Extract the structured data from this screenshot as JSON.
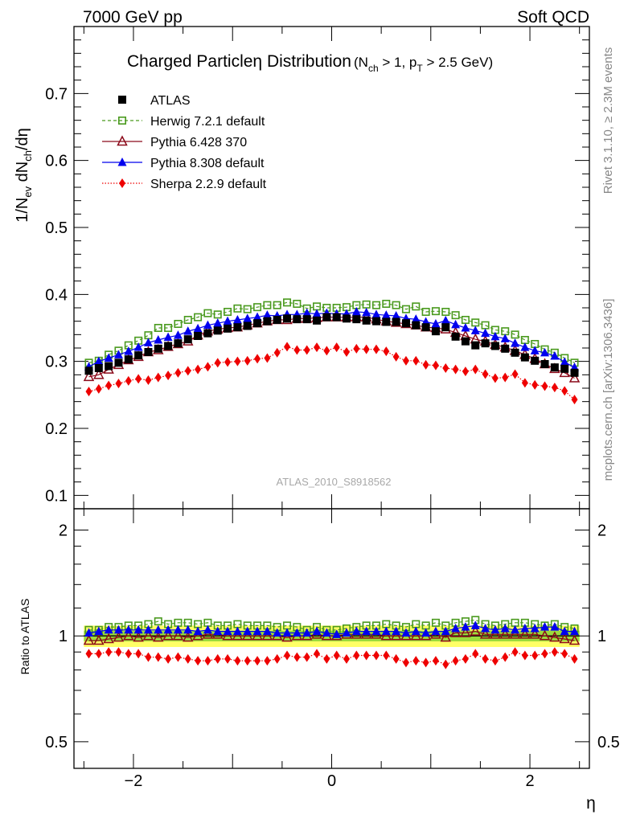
{
  "header": {
    "left": "7000 GeV pp",
    "right": "Soft QCD"
  },
  "title": {
    "main": "Charged Particle",
    "eta": "η",
    "suffix": " Distribution",
    "cond_open": "(N",
    "cond_ch": "ch",
    "cond_mid": " > 1, p",
    "cond_T": "T",
    "cond_close": " > 2.5 GeV)"
  },
  "ylabel_top": {
    "a": "1/N",
    "ev": "ev",
    "b": " dN",
    "ch": "ch",
    "c": "/dη"
  },
  "ylabel_ratio": "Ratio to ATLAS",
  "xlabel": "η",
  "side_right_top": "Rivet 3.1.10, ≥ 2.3M events",
  "side_right_bottom": "mcplots.cern.ch [arXiv:1306.3436]",
  "watermark": "ATLAS_2010_S8918562",
  "colors": {
    "atlas": "#000000",
    "herwig": "#4a9a1e",
    "pythia6": "#8b0a1a",
    "pythia8": "#0000ee",
    "sherpa": "#ee0000",
    "band_inner": "#9bdc3c",
    "band_outer": "#ffff66"
  },
  "chart_data": [
    {
      "type": "scatter",
      "panel": "main",
      "xlabel": "η",
      "ylabel": "1/Nev dNch/dη",
      "xlim": [
        -2.6,
        2.6
      ],
      "ylim": [
        0.08,
        0.8
      ],
      "yticks": [
        0.1,
        0.2,
        0.3,
        0.4,
        0.5,
        0.6,
        0.7
      ],
      "ytick_labels": [
        "0.1",
        "0.2",
        "0.3",
        "0.4",
        "0.5",
        "0.6",
        "0.7"
      ],
      "legend_position": "top-left",
      "x": [
        -2.45,
        -2.35,
        -2.25,
        -2.15,
        -2.05,
        -1.95,
        -1.85,
        -1.75,
        -1.65,
        -1.55,
        -1.45,
        -1.35,
        -1.25,
        -1.15,
        -1.05,
        -0.95,
        -0.85,
        -0.75,
        -0.65,
        -0.55,
        -0.45,
        -0.35,
        -0.25,
        -0.15,
        -0.05,
        0.05,
        0.15,
        0.25,
        0.35,
        0.45,
        0.55,
        0.65,
        0.75,
        0.85,
        0.95,
        1.05,
        1.15,
        1.25,
        1.35,
        1.45,
        1.55,
        1.65,
        1.75,
        1.85,
        1.95,
        2.05,
        2.15,
        2.25,
        2.35,
        2.45
      ],
      "series": [
        {
          "name": "ATLAS",
          "marker": "filled-square",
          "line": "none",
          "values": [
            0.286,
            0.29,
            0.293,
            0.298,
            0.303,
            0.309,
            0.314,
            0.319,
            0.323,
            0.327,
            0.333,
            0.338,
            0.342,
            0.346,
            0.349,
            0.351,
            0.353,
            0.357,
            0.36,
            0.362,
            0.364,
            0.363,
            0.363,
            0.361,
            0.366,
            0.366,
            0.364,
            0.363,
            0.361,
            0.36,
            0.359,
            0.359,
            0.357,
            0.354,
            0.351,
            0.345,
            0.351,
            0.337,
            0.33,
            0.324,
            0.327,
            0.323,
            0.319,
            0.313,
            0.306,
            0.301,
            0.296,
            0.291,
            0.289,
            0.283
          ]
        },
        {
          "name": "Herwig 7.2.1 default",
          "marker": "open-square",
          "line": "dashed",
          "values": [
            0.298,
            0.301,
            0.31,
            0.316,
            0.324,
            0.331,
            0.339,
            0.35,
            0.35,
            0.356,
            0.362,
            0.366,
            0.372,
            0.37,
            0.374,
            0.379,
            0.378,
            0.381,
            0.384,
            0.384,
            0.388,
            0.386,
            0.379,
            0.382,
            0.38,
            0.38,
            0.381,
            0.384,
            0.385,
            0.384,
            0.386,
            0.384,
            0.378,
            0.382,
            0.374,
            0.375,
            0.374,
            0.369,
            0.362,
            0.358,
            0.354,
            0.347,
            0.345,
            0.34,
            0.332,
            0.326,
            0.318,
            0.313,
            0.305,
            0.298
          ]
        },
        {
          "name": "Pythia 6.428 370",
          "marker": "open-triangle",
          "line": "solid",
          "values": [
            0.277,
            0.28,
            0.288,
            0.295,
            0.302,
            0.307,
            0.314,
            0.317,
            0.322,
            0.326,
            0.33,
            0.339,
            0.345,
            0.348,
            0.35,
            0.351,
            0.354,
            0.357,
            0.36,
            0.362,
            0.362,
            0.364,
            0.364,
            0.365,
            0.366,
            0.366,
            0.366,
            0.366,
            0.366,
            0.363,
            0.36,
            0.358,
            0.356,
            0.354,
            0.351,
            0.35,
            0.348,
            0.343,
            0.338,
            0.333,
            0.33,
            0.325,
            0.321,
            0.316,
            0.31,
            0.304,
            0.296,
            0.289,
            0.283,
            0.275
          ]
        },
        {
          "name": "Pythia 8.308 default",
          "marker": "filled-triangle",
          "line": "solid",
          "values": [
            0.292,
            0.3,
            0.305,
            0.31,
            0.315,
            0.321,
            0.328,
            0.332,
            0.336,
            0.339,
            0.345,
            0.349,
            0.354,
            0.357,
            0.36,
            0.362,
            0.364,
            0.366,
            0.369,
            0.368,
            0.37,
            0.37,
            0.372,
            0.371,
            0.372,
            0.371,
            0.371,
            0.374,
            0.373,
            0.37,
            0.369,
            0.368,
            0.364,
            0.363,
            0.359,
            0.356,
            0.361,
            0.355,
            0.35,
            0.346,
            0.342,
            0.337,
            0.334,
            0.327,
            0.321,
            0.316,
            0.313,
            0.308,
            0.299,
            0.291
          ]
        },
        {
          "name": "Sherpa 2.2.9 default",
          "marker": "filled-diamond",
          "line": "dotted",
          "values": [
            0.255,
            0.259,
            0.264,
            0.267,
            0.271,
            0.274,
            0.272,
            0.276,
            0.279,
            0.283,
            0.286,
            0.288,
            0.292,
            0.298,
            0.299,
            0.3,
            0.301,
            0.304,
            0.305,
            0.313,
            0.322,
            0.317,
            0.317,
            0.321,
            0.316,
            0.321,
            0.314,
            0.319,
            0.318,
            0.318,
            0.315,
            0.307,
            0.301,
            0.301,
            0.295,
            0.294,
            0.29,
            0.288,
            0.285,
            0.288,
            0.281,
            0.275,
            0.276,
            0.281,
            0.268,
            0.265,
            0.263,
            0.261,
            0.256,
            0.243
          ]
        }
      ]
    },
    {
      "type": "scatter",
      "panel": "ratio",
      "xlabel": "η",
      "ylabel": "Ratio to ATLAS",
      "xlim": [
        -2.6,
        2.6
      ],
      "ylim": [
        0.42,
        2.3
      ],
      "yscale": "log",
      "yticks": [
        0.5,
        1,
        2
      ],
      "ytick_labels": [
        "0.5",
        "1",
        "2"
      ],
      "xticks": [
        -2,
        0,
        2
      ],
      "xtick_labels": [
        "−2",
        "0",
        "2"
      ],
      "band_outer": 0.07,
      "band_inner": 0.035,
      "reference": 1,
      "x": [
        -2.45,
        -2.35,
        -2.25,
        -2.15,
        -2.05,
        -1.95,
        -1.85,
        -1.75,
        -1.65,
        -1.55,
        -1.45,
        -1.35,
        -1.25,
        -1.15,
        -1.05,
        -0.95,
        -0.85,
        -0.75,
        -0.65,
        -0.55,
        -0.45,
        -0.35,
        -0.25,
        -0.15,
        -0.05,
        0.05,
        0.15,
        0.25,
        0.35,
        0.45,
        0.55,
        0.65,
        0.75,
        0.85,
        0.95,
        1.05,
        1.15,
        1.25,
        1.35,
        1.45,
        1.55,
        1.65,
        1.75,
        1.85,
        1.95,
        2.05,
        2.15,
        2.25,
        2.35,
        2.45
      ],
      "series": [
        {
          "name": "Herwig 7.2.1 default",
          "values": [
            1.04,
            1.04,
            1.06,
            1.06,
            1.07,
            1.07,
            1.08,
            1.1,
            1.08,
            1.09,
            1.09,
            1.08,
            1.09,
            1.07,
            1.07,
            1.08,
            1.07,
            1.07,
            1.07,
            1.06,
            1.07,
            1.06,
            1.04,
            1.06,
            1.04,
            1.04,
            1.05,
            1.06,
            1.07,
            1.07,
            1.08,
            1.07,
            1.06,
            1.08,
            1.07,
            1.09,
            1.07,
            1.09,
            1.1,
            1.11,
            1.08,
            1.07,
            1.08,
            1.09,
            1.09,
            1.08,
            1.07,
            1.08,
            1.06,
            1.05
          ]
        },
        {
          "name": "Pythia 6.428 370",
          "values": [
            0.97,
            0.97,
            0.98,
            0.99,
            1.0,
            0.99,
            1.0,
            0.99,
            1.0,
            1.0,
            0.99,
            1.0,
            1.01,
            1.01,
            1.0,
            1.0,
            1.0,
            1.0,
            1.0,
            1.0,
            0.99,
            1.0,
            1.0,
            1.01,
            1.0,
            1.0,
            1.01,
            1.01,
            1.01,
            1.01,
            1.0,
            1.0,
            1.0,
            1.0,
            1.0,
            1.01,
            0.99,
            1.02,
            1.02,
            1.03,
            1.01,
            1.01,
            1.01,
            1.01,
            1.01,
            1.01,
            1.0,
            0.99,
            0.98,
            0.97
          ]
        },
        {
          "name": "Pythia 8.308 default",
          "values": [
            1.02,
            1.03,
            1.04,
            1.04,
            1.04,
            1.04,
            1.04,
            1.04,
            1.04,
            1.04,
            1.04,
            1.03,
            1.04,
            1.03,
            1.03,
            1.03,
            1.03,
            1.03,
            1.03,
            1.02,
            1.02,
            1.02,
            1.02,
            1.03,
            1.02,
            1.01,
            1.02,
            1.03,
            1.03,
            1.03,
            1.03,
            1.03,
            1.02,
            1.03,
            1.02,
            1.03,
            1.03,
            1.05,
            1.06,
            1.07,
            1.05,
            1.04,
            1.05,
            1.04,
            1.05,
            1.05,
            1.06,
            1.06,
            1.03,
            1.03
          ]
        },
        {
          "name": "Sherpa 2.2.9 default",
          "values": [
            0.89,
            0.89,
            0.9,
            0.9,
            0.89,
            0.89,
            0.87,
            0.87,
            0.86,
            0.87,
            0.86,
            0.85,
            0.85,
            0.86,
            0.86,
            0.85,
            0.85,
            0.85,
            0.85,
            0.86,
            0.88,
            0.87,
            0.87,
            0.89,
            0.86,
            0.88,
            0.86,
            0.88,
            0.88,
            0.88,
            0.88,
            0.86,
            0.84,
            0.85,
            0.84,
            0.85,
            0.83,
            0.85,
            0.86,
            0.89,
            0.86,
            0.85,
            0.87,
            0.9,
            0.88,
            0.88,
            0.89,
            0.9,
            0.89,
            0.86
          ]
        }
      ]
    }
  ]
}
